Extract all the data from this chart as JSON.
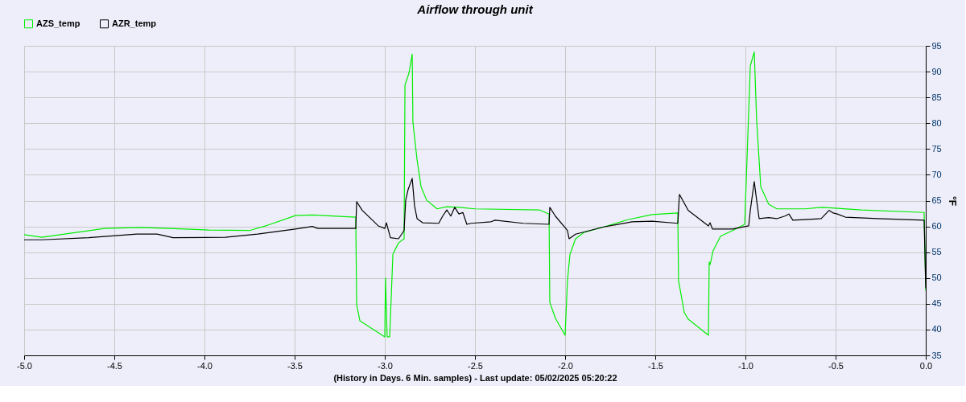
{
  "chart_data": {
    "type": "line",
    "title": "Airflow through unit",
    "xlabel": "(History in Days. 6 Min. samples) - Last update: 05/02/2025 05:20:22",
    "ylabel": "°F",
    "xlim": [
      -5.0,
      0.0
    ],
    "xticks": [
      {
        "value": -5,
        "label": "-5.0"
      },
      -4.5,
      {
        "value": -4,
        "label": "-4.0"
      },
      -3.5,
      {
        "value": -3,
        "label": "-3.0"
      },
      -2.5,
      {
        "value": -2,
        "label": "-2.0"
      },
      -1.5,
      {
        "value": -1,
        "label": "-1.0"
      },
      -0.5,
      {
        "value": 0,
        "label": "0.0"
      }
    ],
    "ylim": [
      35,
      95
    ],
    "yticks": [
      35,
      40,
      45,
      50,
      55,
      60,
      65,
      70,
      75,
      80,
      85,
      90,
      95
    ],
    "grid": true,
    "legend": "top left",
    "line_style": "solid",
    "marker": "none",
    "series": [
      {
        "name": "AZS_temp",
        "color": "#00ee00",
        "x": [
          -5.0,
          -4.902,
          -4.554,
          -4.353,
          -3.973,
          -3.75,
          -3.661,
          -3.496,
          -3.402,
          -3.161,
          -3.156,
          -3.138,
          -3.0,
          -2.996,
          -2.987,
          -2.973,
          -2.955,
          -2.924,
          -2.893,
          -2.888,
          -2.866,
          -2.848,
          -2.844,
          -2.821,
          -2.799,
          -2.768,
          -2.71,
          -2.656,
          -2.589,
          -2.5,
          -2.143,
          -2.089,
          -2.085,
          -2.054,
          -2.0,
          -1.987,
          -1.973,
          -1.942,
          -1.897,
          -1.786,
          -1.652,
          -1.518,
          -1.375,
          -1.371,
          -1.339,
          -1.317,
          -1.205,
          -1.201,
          -1.196,
          -1.179,
          -1.138,
          -1.071,
          -1.004,
          -0.973,
          -0.951,
          -0.938,
          -0.915,
          -0.871,
          -0.826,
          -0.67,
          -0.571,
          -0.357,
          -0.009,
          0.0
        ],
        "values": [
          58.4,
          57.9,
          59.6,
          59.8,
          59.3,
          59.2,
          60.1,
          62.1,
          62.2,
          61.8,
          44.8,
          41.7,
          38.6,
          50.0,
          38.6,
          38.6,
          54.6,
          56.8,
          57.6,
          87.4,
          89.7,
          93.4,
          80.2,
          72.9,
          67.7,
          65.1,
          63.4,
          63.8,
          63.7,
          63.4,
          63.2,
          62.4,
          45.3,
          42.2,
          38.9,
          49.5,
          54.6,
          57.6,
          58.8,
          59.9,
          61.3,
          62.3,
          62.6,
          49.5,
          43.3,
          42.0,
          38.9,
          53.1,
          52.6,
          55.3,
          58.1,
          59.2,
          60.4,
          91.1,
          93.8,
          80.7,
          67.7,
          64.3,
          63.4,
          63.4,
          63.7,
          63.2,
          62.7,
          47.5
        ]
      },
      {
        "name": "AZR_temp",
        "color": "#000000",
        "x": [
          -5.0,
          -4.902,
          -4.643,
          -4.375,
          -4.263,
          -4.174,
          -3.884,
          -3.705,
          -3.496,
          -3.402,
          -3.371,
          -3.161,
          -3.156,
          -3.125,
          -3.036,
          -3.0,
          -2.991,
          -2.969,
          -2.924,
          -2.893,
          -2.884,
          -2.871,
          -2.848,
          -2.835,
          -2.821,
          -2.79,
          -2.701,
          -2.679,
          -2.656,
          -2.634,
          -2.612,
          -2.589,
          -2.567,
          -2.545,
          -2.522,
          -2.411,
          -2.388,
          -2.232,
          -2.089,
          -2.085,
          -2.054,
          -1.987,
          -1.978,
          -1.942,
          -1.786,
          -1.629,
          -1.518,
          -1.375,
          -1.366,
          -1.317,
          -1.205,
          -1.196,
          -1.183,
          -1.071,
          -0.982,
          -0.973,
          -0.951,
          -0.938,
          -0.924,
          -0.871,
          -0.826,
          -0.781,
          -0.759,
          -0.737,
          -0.58,
          -0.536,
          -0.513,
          -0.491,
          -0.446,
          -0.268,
          -0.009,
          0.0
        ],
        "values": [
          57.4,
          57.4,
          57.8,
          58.5,
          58.5,
          57.8,
          57.9,
          58.5,
          59.5,
          60.0,
          59.6,
          59.6,
          64.8,
          63.1,
          60.1,
          59.6,
          60.7,
          57.8,
          57.6,
          59.2,
          65.1,
          67.1,
          69.3,
          64.0,
          61.5,
          60.7,
          60.6,
          62.0,
          63.2,
          62.0,
          63.7,
          62.4,
          62.7,
          60.4,
          60.6,
          60.9,
          61.2,
          60.6,
          60.4,
          63.7,
          62.0,
          59.2,
          57.6,
          58.5,
          59.9,
          60.9,
          61.0,
          60.6,
          66.2,
          63.1,
          60.1,
          60.7,
          59.5,
          59.5,
          60.1,
          63.1,
          68.7,
          65.1,
          61.5,
          61.7,
          61.5,
          62.0,
          62.4,
          61.2,
          61.5,
          63.1,
          62.6,
          62.4,
          61.8,
          61.5,
          61.2,
          48.0
        ]
      }
    ]
  }
}
